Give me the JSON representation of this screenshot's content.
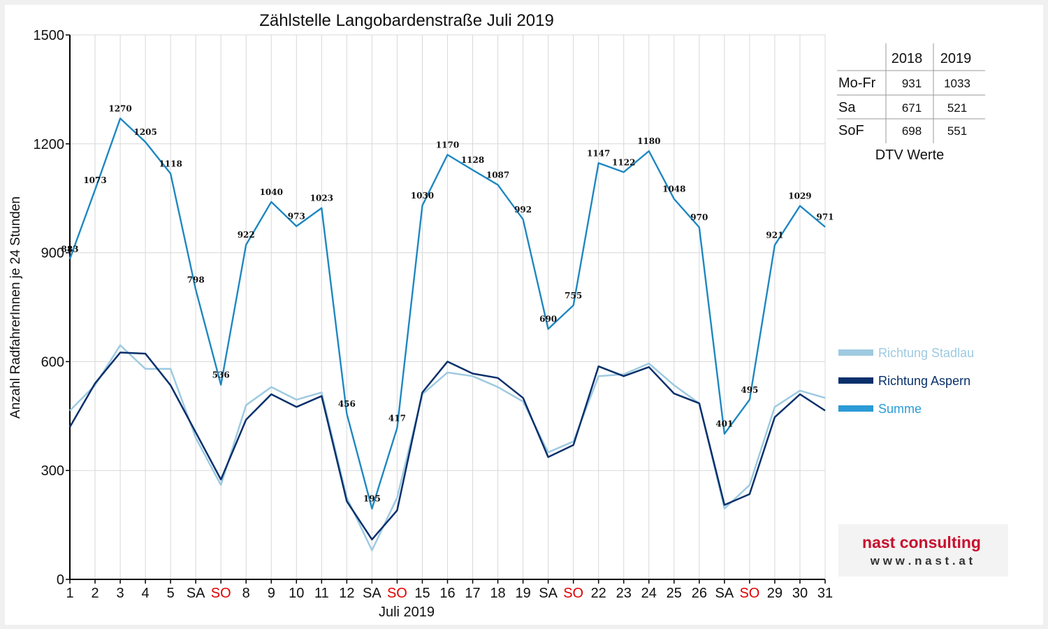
{
  "chart_data": {
    "type": "line",
    "title": "Zählstelle Langobardenstraße Juli 2019",
    "xlabel": "Juli 2019",
    "ylabel": "Anzahl RadfahrerInnen je 24 Stunden",
    "ylim": [
      0,
      1500
    ],
    "yticks": [
      0,
      300,
      600,
      900,
      1200,
      1500
    ],
    "grid": true,
    "legend_placement": "right",
    "x": [
      1,
      2,
      3,
      4,
      5,
      6,
      7,
      8,
      9,
      10,
      11,
      12,
      13,
      14,
      15,
      16,
      17,
      18,
      19,
      20,
      21,
      22,
      23,
      24,
      25,
      26,
      27,
      28,
      29,
      30,
      31
    ],
    "tick_labels": [
      "1",
      "2",
      "3",
      "4",
      "5",
      "SA",
      "SO",
      "8",
      "9",
      "10",
      "11",
      "12",
      "SA",
      "SO",
      "15",
      "16",
      "17",
      "18",
      "19",
      "SA",
      "SO",
      "22",
      "23",
      "24",
      "25",
      "26",
      "SA",
      "SO",
      "29",
      "30",
      "31"
    ],
    "series": [
      {
        "name": "Richtung Stadlau",
        "color": "#9ecae1",
        "values": [
          465,
          535,
          645,
          580,
          580,
          390,
          260,
          480,
          530,
          495,
          515,
          225,
          80,
          225,
          510,
          570,
          560,
          530,
          490,
          350,
          380,
          560,
          565,
          595,
          535,
          485,
          195,
          260,
          475,
          520,
          500
        ]
      },
      {
        "name": "Richtung Aspern",
        "color": "#08306b",
        "values": [
          420,
          540,
          625,
          622,
          535,
          405,
          275,
          440,
          510,
          475,
          505,
          215,
          110,
          190,
          515,
          600,
          567,
          555,
          500,
          337,
          370,
          587,
          560,
          585,
          512,
          485,
          205,
          235,
          447,
          510,
          465
        ]
      },
      {
        "name": "Summe",
        "color": "#2b9bd6",
        "values": [
          883,
          1073,
          1270,
          1205,
          1118,
          798,
          536,
          922,
          1040,
          973,
          1023,
          456,
          195,
          417,
          1030,
          1170,
          1128,
          1087,
          992,
          690,
          755,
          1147,
          1122,
          1180,
          1048,
          970,
          401,
          495,
          921,
          1029,
          971
        ]
      }
    ]
  },
  "dtv_table": {
    "columns": [
      "",
      "2018",
      "2019"
    ],
    "rows": [
      [
        "Mo-Fr",
        "931",
        "1033"
      ],
      [
        "Sa",
        "671",
        "521"
      ],
      [
        "SoF",
        "698",
        "551"
      ]
    ],
    "caption": "DTV Werte"
  },
  "logo": {
    "name": "nast consulting",
    "url": "w w w . n a s t . a t"
  },
  "colors": {
    "weekend_sunday": "#e00000",
    "background": "#f0f0f0",
    "plot_background": "#ffffff"
  }
}
